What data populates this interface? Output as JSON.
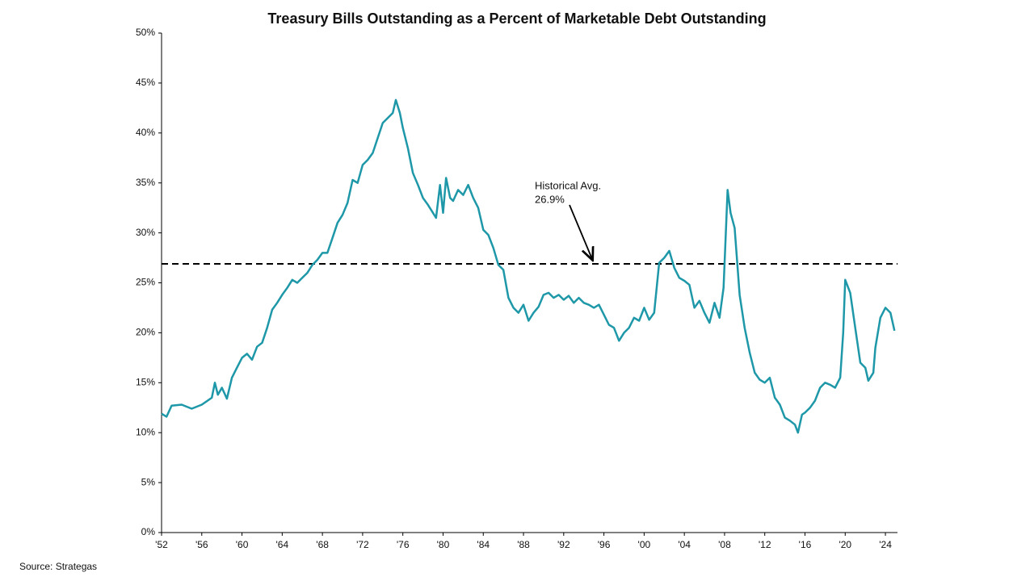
{
  "chart_data": {
    "type": "line",
    "title": "Treasury Bills Outstanding as a Percent of Marketable Debt Outstanding",
    "source": "Source: Strategas",
    "xlim": [
      1952,
      2025.2
    ],
    "ylim": [
      0,
      50
    ],
    "xticks": [
      {
        "value": 1952,
        "label": "'52"
      },
      {
        "value": 1956,
        "label": "'56"
      },
      {
        "value": 1960,
        "label": "'60"
      },
      {
        "value": 1964,
        "label": "'64"
      },
      {
        "value": 1968,
        "label": "'68"
      },
      {
        "value": 1972,
        "label": "'72"
      },
      {
        "value": 1976,
        "label": "'76"
      },
      {
        "value": 1980,
        "label": "'80"
      },
      {
        "value": 1984,
        "label": "'84"
      },
      {
        "value": 1988,
        "label": "'88"
      },
      {
        "value": 1992,
        "label": "'92"
      },
      {
        "value": 1996,
        "label": "'96"
      },
      {
        "value": 2000,
        "label": "'00"
      },
      {
        "value": 2004,
        "label": "'04"
      },
      {
        "value": 2008,
        "label": "'08"
      },
      {
        "value": 2012,
        "label": "'12"
      },
      {
        "value": 2016,
        "label": "'16"
      },
      {
        "value": 2020,
        "label": "'20"
      },
      {
        "value": 2024,
        "label": "'24"
      }
    ],
    "yticks": [
      {
        "value": 0,
        "label": "0%"
      },
      {
        "value": 5,
        "label": "5%"
      },
      {
        "value": 10,
        "label": "10%"
      },
      {
        "value": 15,
        "label": "15%"
      },
      {
        "value": 20,
        "label": "20%"
      },
      {
        "value": 25,
        "label": "25%"
      },
      {
        "value": 30,
        "label": "30%"
      },
      {
        "value": 35,
        "label": "35%"
      },
      {
        "value": 40,
        "label": "40%"
      },
      {
        "value": 45,
        "label": "45%"
      },
      {
        "value": 50,
        "label": "50%"
      }
    ],
    "average": {
      "text": "Historical Avg.",
      "value": 26.9,
      "value_label": "26.9%"
    },
    "series": [
      {
        "name": "Treasury Bills Outstanding",
        "color": "#1e98a8",
        "x": [
          1952,
          1952.5,
          1953,
          1954,
          1955,
          1956,
          1957,
          1957.3,
          1957.6,
          1958,
          1958.5,
          1959,
          1959.5,
          1960,
          1960.5,
          1961,
          1961.5,
          1962,
          1962.5,
          1963,
          1963.5,
          1964,
          1964.5,
          1965,
          1965.5,
          1966,
          1966.5,
          1967,
          1967.5,
          1968,
          1968.5,
          1969,
          1969.5,
          1970,
          1970.5,
          1971,
          1971.5,
          1972,
          1972.5,
          1973,
          1973.5,
          1974,
          1974.5,
          1975,
          1975.3,
          1975.7,
          1976,
          1976.5,
          1977,
          1977.5,
          1978,
          1978.5,
          1979,
          1979.3,
          1979.7,
          1980,
          1980.3,
          1980.7,
          1981,
          1981.5,
          1982,
          1982.5,
          1983,
          1983.5,
          1984,
          1984.5,
          1985,
          1985.5,
          1986,
          1986.5,
          1987,
          1987.5,
          1988,
          1988.5,
          1989,
          1989.5,
          1990,
          1990.5,
          1991,
          1991.5,
          1992,
          1992.5,
          1993,
          1993.5,
          1994,
          1994.5,
          1995,
          1995.5,
          1996,
          1996.5,
          1997,
          1997.5,
          1998,
          1998.5,
          1999,
          1999.5,
          2000,
          2000.5,
          2001,
          2001.5,
          2002,
          2002.5,
          2003,
          2003.5,
          2004,
          2004.5,
          2005,
          2005.5,
          2006,
          2006.5,
          2007,
          2007.5,
          2007.9,
          2008.3,
          2008.6,
          2009,
          2009.5,
          2010,
          2010.5,
          2011,
          2011.5,
          2012,
          2012.5,
          2013,
          2013.5,
          2014,
          2014.5,
          2015,
          2015.3,
          2015.7,
          2016,
          2016.5,
          2017,
          2017.5,
          2018,
          2018.5,
          2019,
          2019.5,
          2019.8,
          2020,
          2020.5,
          2021,
          2021.5,
          2022,
          2022.3,
          2022.8,
          2023,
          2023.5,
          2024,
          2024.5,
          2024.9
        ],
        "values": [
          11.9,
          11.6,
          12.7,
          12.8,
          12.4,
          12.8,
          13.5,
          15.0,
          13.8,
          14.5,
          13.4,
          15.5,
          16.5,
          17.5,
          17.9,
          17.3,
          18.6,
          19.0,
          20.5,
          22.3,
          23.0,
          23.8,
          24.5,
          25.3,
          25.0,
          25.5,
          26.0,
          26.8,
          27.3,
          28.0,
          28.0,
          29.5,
          31.0,
          31.8,
          33.0,
          35.3,
          35.0,
          36.8,
          37.3,
          38.0,
          39.5,
          41.0,
          41.5,
          42.0,
          43.3,
          42.0,
          40.5,
          38.5,
          36.0,
          34.8,
          33.5,
          32.8,
          32.0,
          31.5,
          34.8,
          32.0,
          35.5,
          33.5,
          33.2,
          34.3,
          33.8,
          34.8,
          33.5,
          32.5,
          30.3,
          29.8,
          28.5,
          26.8,
          26.3,
          23.5,
          22.5,
          22.0,
          22.8,
          21.2,
          22.0,
          22.6,
          23.8,
          24.0,
          23.5,
          23.8,
          23.3,
          23.7,
          23.0,
          23.5,
          23.0,
          22.8,
          22.5,
          22.8,
          21.8,
          20.8,
          20.5,
          19.2,
          20.0,
          20.5,
          21.5,
          21.2,
          22.5,
          21.3,
          22.0,
          27.0,
          27.5,
          28.2,
          26.5,
          25.5,
          25.2,
          24.8,
          22.5,
          23.2,
          22.0,
          21.0,
          23.0,
          21.5,
          24.5,
          34.3,
          32.0,
          30.5,
          23.8,
          20.5,
          18.0,
          16.0,
          15.3,
          15.0,
          15.5,
          13.5,
          12.8,
          11.5,
          11.2,
          10.8,
          10.0,
          11.8,
          12.0,
          12.5,
          13.2,
          14.5,
          15.0,
          14.8,
          14.5,
          15.5,
          20.0,
          25.3,
          24.0,
          20.5,
          17.0,
          16.5,
          15.2,
          16.0,
          18.5,
          21.5,
          22.5,
          22.0,
          20.2
        ]
      }
    ]
  }
}
